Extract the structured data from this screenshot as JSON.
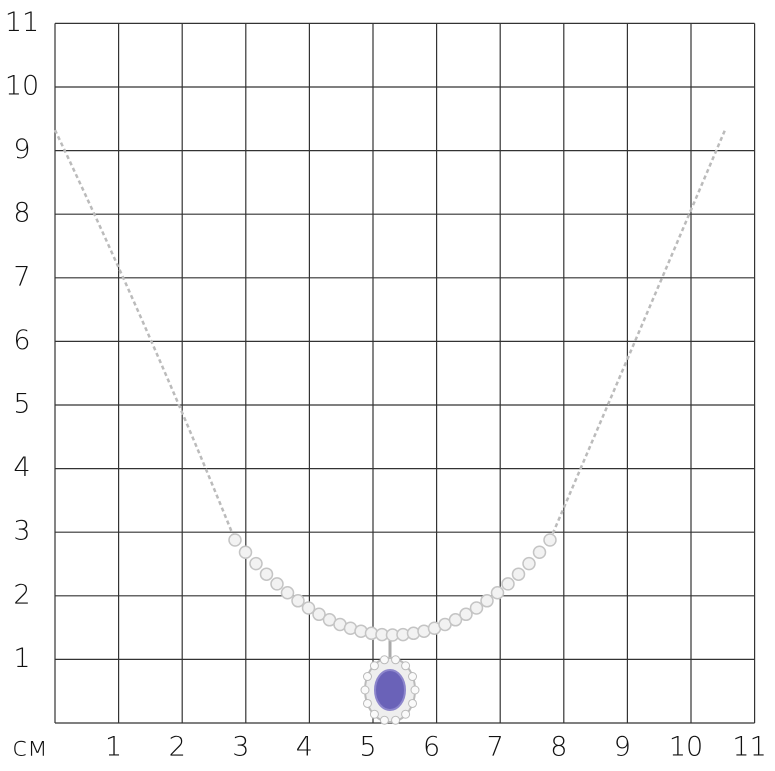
{
  "axis_unit": "см",
  "x_labels": [
    "1",
    "2",
    "3",
    "4",
    "5",
    "6",
    "7",
    "8",
    "9",
    "10",
    "11"
  ],
  "y_labels": [
    "1",
    "2",
    "3",
    "4",
    "5",
    "6",
    "7",
    "8",
    "9",
    "10",
    "11"
  ]
}
